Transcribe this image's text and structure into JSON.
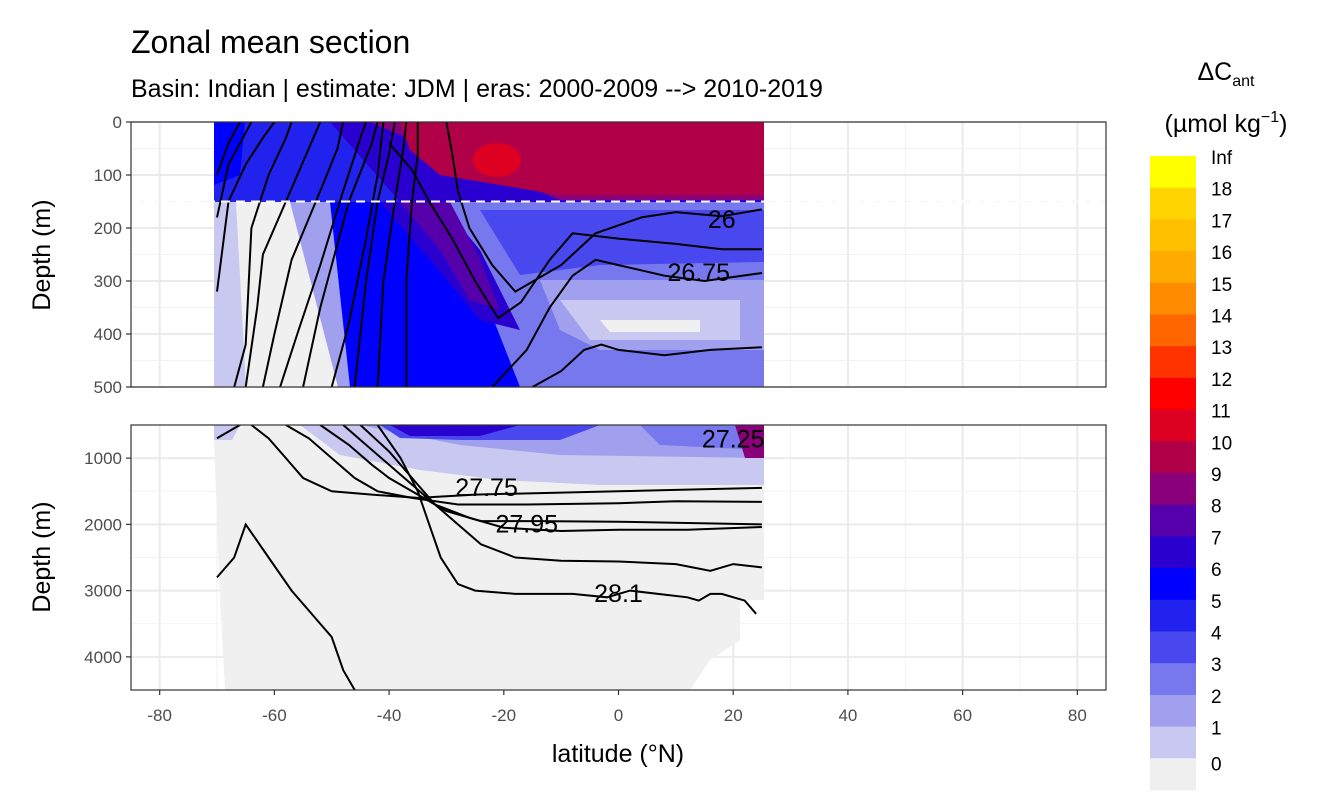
{
  "header": {
    "title": "Zonal mean section",
    "subtitle": "Basin: Indian | estimate: JDM  | eras: 2000-2009 --> 2010-2019"
  },
  "chart_data": {
    "type": "heatmap",
    "title": "Zonal mean section",
    "subtitle": "Basin: Indian | estimate: JDM  | eras: 2000-2009 --> 2010-2019",
    "xlabel": "latitude (°N)",
    "ylabel": "Depth (m)",
    "xlim": [
      -85,
      85
    ],
    "x_ticks": [
      "-80",
      "-60",
      "-40",
      "-20",
      "0",
      "20",
      "40",
      "60",
      "80"
    ],
    "x_tick_values": [
      -80,
      -60,
      -40,
      -20,
      0,
      20,
      40,
      60,
      80
    ],
    "grid": true,
    "panels": [
      {
        "name": "upper",
        "ylim": [
          500,
          0
        ],
        "y_ticks": [
          "0",
          "100",
          "200",
          "300",
          "400",
          "500"
        ],
        "y_tick_values": [
          0,
          100,
          200,
          300,
          400,
          500
        ],
        "reference_depth_dashed": 150
      },
      {
        "name": "lower",
        "ylim": [
          4500,
          500
        ],
        "y_ticks": [
          "1000",
          "2000",
          "3000",
          "4000"
        ],
        "y_tick_values": [
          1000,
          2000,
          3000,
          4000
        ]
      }
    ],
    "data_lat_range": [
      -70,
      25
    ],
    "legend": {
      "title_main": "ΔC",
      "title_sub": "ant",
      "units_prefix": "(µmol kg",
      "units_sup": "−1",
      "units_suffix": ")",
      "labels": [
        "Inf",
        "18",
        "17",
        "16",
        "15",
        "14",
        "13",
        "12",
        "11",
        "10",
        "9",
        "8",
        "7",
        "6",
        "5",
        "4",
        "3",
        "2",
        "1",
        "0"
      ],
      "colors": [
        "#ffff00",
        "#ffd400",
        "#ffc000",
        "#ffaa00",
        "#ff8c00",
        "#ff6600",
        "#ff3300",
        "#ff0000",
        "#dd0022",
        "#b00048",
        "#8a007a",
        "#5500aa",
        "#2a00d0",
        "#0000ff",
        "#2222ee",
        "#4848ee",
        "#7777ee",
        "#a0a0ee",
        "#c8c8f0",
        "#f0f0f0"
      ],
      "position": "right"
    },
    "isopycnal_labels": [
      {
        "label": "26",
        "lat": 18,
        "depth": 185
      },
      {
        "label": "26.75",
        "lat": 14,
        "depth": 285
      },
      {
        "label": "27.25",
        "lat": 20,
        "depth": 720
      },
      {
        "label": "27.75",
        "lat": -23,
        "depth": 1450
      },
      {
        "label": "27.95",
        "lat": -16,
        "depth": 2000
      },
      {
        "label": "28.1",
        "lat": 0,
        "depth": 3050
      }
    ],
    "isopycnal_lines": {
      "upper": [
        [
          [
            -70,
            100
          ],
          [
            -68,
            40
          ],
          [
            -66,
            0
          ]
        ],
        [
          [
            -70,
            180
          ],
          [
            -68,
            80
          ],
          [
            -66,
            40
          ],
          [
            -64,
            0
          ]
        ],
        [
          [
            -70,
            320
          ],
          [
            -68,
            150
          ],
          [
            -65,
            80
          ],
          [
            -62,
            30
          ],
          [
            -60,
            0
          ]
        ],
        [
          [
            -67,
            500
          ],
          [
            -65,
            420
          ],
          [
            -64,
            200
          ],
          [
            -61,
            100
          ],
          [
            -58,
            30
          ],
          [
            -57,
            0
          ]
        ],
        [
          [
            -65,
            500
          ],
          [
            -63,
            350
          ],
          [
            -62,
            250
          ],
          [
            -58,
            150
          ],
          [
            -54,
            50
          ],
          [
            -52,
            0
          ]
        ],
        [
          [
            -62,
            500
          ],
          [
            -60,
            400
          ],
          [
            -57,
            260
          ],
          [
            -52,
            130
          ],
          [
            -49,
            50
          ],
          [
            -48,
            0
          ]
        ],
        [
          [
            -59,
            500
          ],
          [
            -56,
            400
          ],
          [
            -52,
            270
          ],
          [
            -48,
            130
          ],
          [
            -45,
            30
          ],
          [
            -44,
            0
          ]
        ],
        [
          [
            -55,
            500
          ],
          [
            -52,
            350
          ],
          [
            -47,
            150
          ],
          [
            -43,
            40
          ],
          [
            -42,
            0
          ]
        ],
        [
          [
            -50,
            500
          ],
          [
            -47,
            380
          ],
          [
            -44,
            220
          ],
          [
            -42,
            100
          ],
          [
            -41,
            0
          ]
        ],
        [
          [
            -46,
            500
          ],
          [
            -44,
            300
          ],
          [
            -42,
            150
          ],
          [
            -40,
            60
          ],
          [
            -39,
            0
          ]
        ],
        [
          [
            -42,
            500
          ],
          [
            -41,
            300
          ],
          [
            -39,
            150
          ],
          [
            -37.5,
            50
          ],
          [
            -37,
            0
          ]
        ],
        [
          [
            -37,
            500
          ],
          [
            -37,
            300
          ],
          [
            -36,
            150
          ],
          [
            -35,
            60
          ],
          [
            -35,
            0
          ]
        ],
        [
          [
            -30,
            0
          ],
          [
            -29,
            60
          ],
          [
            -28,
            130
          ],
          [
            -26,
            200
          ],
          [
            -22,
            270
          ],
          [
            -18,
            320
          ],
          [
            -10,
            270
          ],
          [
            -4,
            210
          ],
          [
            4,
            180
          ],
          [
            10,
            170
          ],
          [
            18,
            178
          ],
          [
            25,
            165
          ]
        ],
        [
          [
            -40,
            40
          ],
          [
            -36,
            90
          ],
          [
            -33,
            150
          ],
          [
            -29,
            220
          ],
          [
            -25,
            300
          ],
          [
            -21,
            370
          ],
          [
            -17,
            340
          ],
          [
            -12,
            260
          ],
          [
            -8,
            210
          ],
          [
            0,
            220
          ],
          [
            10,
            230
          ],
          [
            18,
            240
          ],
          [
            25,
            240
          ]
        ],
        [
          [
            -22,
            500
          ],
          [
            -16,
            430
          ],
          [
            -12,
            350
          ],
          [
            -8,
            290
          ],
          [
            -4,
            260
          ],
          [
            0,
            270
          ],
          [
            8,
            290
          ],
          [
            15,
            300
          ],
          [
            25,
            285
          ]
        ],
        [
          [
            -15,
            500
          ],
          [
            -10,
            470
          ],
          [
            -6,
            430
          ],
          [
            -3,
            420
          ],
          [
            0,
            430
          ],
          [
            8,
            440
          ],
          [
            16,
            430
          ],
          [
            25,
            425
          ]
        ]
      ],
      "lower": [
        [
          [
            -70,
            700
          ],
          [
            -67,
            550
          ],
          [
            -66,
            500
          ]
        ],
        [
          [
            -64,
            500
          ],
          [
            -61,
            700
          ],
          [
            -58,
            1000
          ],
          [
            -55,
            1300
          ],
          [
            -50,
            1500
          ],
          [
            -43,
            1550
          ],
          [
            -35,
            1600
          ],
          [
            -25,
            1550
          ],
          [
            -10,
            1520
          ],
          [
            0,
            1500
          ],
          [
            10,
            1480
          ],
          [
            25,
            1450
          ]
        ],
        [
          [
            -58,
            500
          ],
          [
            -54,
            700
          ],
          [
            -50,
            1000
          ],
          [
            -46,
            1300
          ],
          [
            -42,
            1500
          ],
          [
            -36,
            1600
          ],
          [
            -28,
            1700
          ],
          [
            -16,
            1700
          ],
          [
            0,
            1680
          ],
          [
            10,
            1650
          ],
          [
            25,
            1660
          ]
        ],
        [
          [
            -52,
            500
          ],
          [
            -47,
            800
          ],
          [
            -43,
            1100
          ],
          [
            -40,
            1300
          ],
          [
            -36,
            1500
          ],
          [
            -30,
            1800
          ],
          [
            -24,
            1950
          ],
          [
            -14,
            1950
          ],
          [
            0,
            1960
          ],
          [
            12,
            1980
          ],
          [
            25,
            2000
          ]
        ],
        [
          [
            -48,
            500
          ],
          [
            -44,
            800
          ],
          [
            -40,
            1100
          ],
          [
            -36,
            1400
          ],
          [
            -32,
            1700
          ],
          [
            -26,
            1900
          ],
          [
            -20,
            2050
          ],
          [
            -10,
            2100
          ],
          [
            0,
            2080
          ],
          [
            12,
            2080
          ],
          [
            25,
            2040
          ]
        ],
        [
          [
            -45,
            500
          ],
          [
            -40,
            900
          ],
          [
            -36,
            1300
          ],
          [
            -32,
            1700
          ],
          [
            -28,
            2000
          ],
          [
            -24,
            2300
          ],
          [
            -18,
            2500
          ],
          [
            -10,
            2550
          ],
          [
            0,
            2560
          ],
          [
            10,
            2600
          ],
          [
            16,
            2700
          ],
          [
            20,
            2600
          ],
          [
            25,
            2650
          ]
        ],
        [
          [
            -42,
            500
          ],
          [
            -38,
            1000
          ],
          [
            -35,
            1500
          ],
          [
            -33,
            2000
          ],
          [
            -31,
            2500
          ],
          [
            -28,
            2900
          ],
          [
            -25,
            3000
          ],
          [
            -18,
            3050
          ],
          [
            -8,
            3050
          ],
          [
            -2,
            3100
          ],
          [
            2,
            3000
          ],
          [
            8,
            3060
          ],
          [
            12,
            3100
          ],
          [
            14,
            3150
          ],
          [
            16,
            3050
          ],
          [
            18,
            3050
          ],
          [
            22,
            3150
          ],
          [
            24,
            3350
          ]
        ],
        [
          [
            -70,
            2800
          ],
          [
            -67,
            2500
          ],
          [
            -65,
            2000
          ],
          [
            -61,
            2500
          ],
          [
            -57,
            3000
          ],
          [
            -53,
            3400
          ],
          [
            -50,
            3700
          ],
          [
            -48,
            4200
          ],
          [
            -46,
            4500
          ]
        ]
      ]
    }
  }
}
